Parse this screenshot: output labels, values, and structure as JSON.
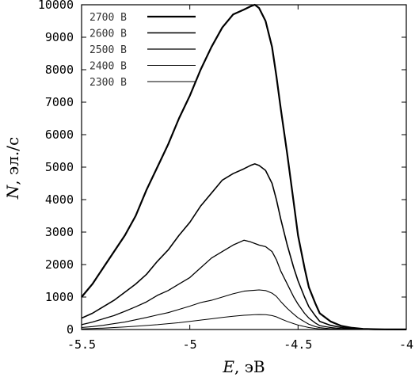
{
  "chart_data": {
    "type": "line",
    "xlabel_var": "E",
    "xlabel_unit": ", эВ",
    "ylabel_var": "N",
    "ylabel_unit": ", эл./с",
    "xlim": [
      -5.5,
      -4.0
    ],
    "ylim": [
      0,
      10000
    ],
    "xticks": [
      -5.5,
      -5,
      -4.5,
      -4
    ],
    "xtick_labels": [
      "-5.5",
      "-5",
      "-4.5",
      "-4"
    ],
    "yticks": [
      0,
      1000,
      2000,
      3000,
      4000,
      5000,
      6000,
      7000,
      8000,
      9000,
      10000
    ],
    "ytick_labels": [
      "0",
      "1000",
      "2000",
      "3000",
      "4000",
      "5000",
      "6000",
      "7000",
      "8000",
      "9000",
      "10000"
    ],
    "grid": false,
    "legend_position": "top-left",
    "series": [
      {
        "name": "2700 В",
        "x": [
          -5.5,
          -5.45,
          -5.4,
          -5.35,
          -5.3,
          -5.25,
          -5.2,
          -5.15,
          -5.1,
          -5.05,
          -5.0,
          -4.95,
          -4.9,
          -4.85,
          -4.8,
          -4.75,
          -4.72,
          -4.7,
          -4.68,
          -4.65,
          -4.62,
          -4.6,
          -4.58,
          -4.55,
          -4.52,
          -4.5,
          -4.47,
          -4.45,
          -4.42,
          -4.4,
          -4.35,
          -4.3,
          -4.25,
          -4.2,
          -4.15,
          -4.1,
          -4.05,
          -4.0
        ],
        "y": [
          1000,
          1400,
          1900,
          2400,
          2900,
          3500,
          4300,
          5000,
          5700,
          6500,
          7200,
          8000,
          8700,
          9300,
          9700,
          9850,
          9950,
          10000,
          9900,
          9500,
          8700,
          7800,
          6800,
          5400,
          3900,
          2900,
          1900,
          1300,
          800,
          500,
          250,
          110,
          50,
          20,
          10,
          5,
          3,
          2
        ]
      },
      {
        "name": "2600 В",
        "x": [
          -5.5,
          -5.45,
          -5.4,
          -5.35,
          -5.3,
          -5.25,
          -5.2,
          -5.15,
          -5.1,
          -5.05,
          -5.0,
          -4.95,
          -4.9,
          -4.85,
          -4.8,
          -4.75,
          -4.72,
          -4.7,
          -4.68,
          -4.65,
          -4.62,
          -4.6,
          -4.58,
          -4.55,
          -4.52,
          -4.5,
          -4.47,
          -4.45,
          -4.42,
          -4.4,
          -4.35,
          -4.3,
          -4.25,
          -4.2,
          -4.15,
          -4.1,
          -4.05,
          -4.0
        ],
        "y": [
          350,
          500,
          700,
          900,
          1150,
          1400,
          1700,
          2100,
          2450,
          2900,
          3300,
          3800,
          4200,
          4600,
          4800,
          4950,
          5050,
          5100,
          5050,
          4900,
          4500,
          4000,
          3400,
          2600,
          1900,
          1500,
          1000,
          700,
          420,
          250,
          130,
          60,
          25,
          10,
          5,
          3,
          2,
          1
        ]
      },
      {
        "name": "2500 В",
        "x": [
          -5.5,
          -5.45,
          -5.4,
          -5.35,
          -5.3,
          -5.25,
          -5.2,
          -5.15,
          -5.1,
          -5.05,
          -5.0,
          -4.95,
          -4.9,
          -4.85,
          -4.8,
          -4.75,
          -4.72,
          -4.7,
          -4.68,
          -4.65,
          -4.62,
          -4.6,
          -4.58,
          -4.55,
          -4.52,
          -4.5,
          -4.47,
          -4.45,
          -4.42,
          -4.4,
          -4.35,
          -4.3,
          -4.25,
          -4.2,
          -4.15,
          -4.1,
          -4.05,
          -4.0
        ],
        "y": [
          150,
          230,
          330,
          430,
          560,
          700,
          850,
          1050,
          1200,
          1400,
          1600,
          1900,
          2200,
          2400,
          2600,
          2750,
          2700,
          2650,
          2600,
          2550,
          2400,
          2150,
          1800,
          1400,
          1000,
          780,
          500,
          350,
          200,
          120,
          60,
          28,
          12,
          5,
          3,
          2,
          1,
          1
        ]
      },
      {
        "name": "2400 В",
        "x": [
          -5.5,
          -5.45,
          -5.4,
          -5.35,
          -5.3,
          -5.25,
          -5.2,
          -5.15,
          -5.1,
          -5.05,
          -5.0,
          -4.95,
          -4.9,
          -4.85,
          -4.8,
          -4.75,
          -4.72,
          -4.7,
          -4.68,
          -4.65,
          -4.62,
          -4.6,
          -4.58,
          -4.55,
          -4.52,
          -4.5,
          -4.47,
          -4.45,
          -4.42,
          -4.4,
          -4.35,
          -4.3,
          -4.25,
          -4.2,
          -4.15,
          -4.1,
          -4.05,
          -4.0
        ],
        "y": [
          60,
          90,
          130,
          180,
          230,
          300,
          370,
          450,
          520,
          620,
          720,
          830,
          900,
          1000,
          1100,
          1180,
          1200,
          1210,
          1220,
          1200,
          1120,
          1020,
          860,
          650,
          470,
          360,
          240,
          160,
          90,
          55,
          25,
          12,
          5,
          2,
          1,
          1,
          0,
          0
        ]
      },
      {
        "name": "2300 В",
        "x": [
          -5.5,
          -5.45,
          -5.4,
          -5.35,
          -5.3,
          -5.25,
          -5.2,
          -5.15,
          -5.1,
          -5.05,
          -5.0,
          -4.95,
          -4.9,
          -4.85,
          -4.8,
          -4.75,
          -4.72,
          -4.7,
          -4.68,
          -4.65,
          -4.62,
          -4.6,
          -4.58,
          -4.55,
          -4.52,
          -4.5,
          -4.47,
          -4.45,
          -4.42,
          -4.4,
          -4.35,
          -4.3,
          -4.25,
          -4.2,
          -4.15,
          -4.1,
          -4.05,
          -4.0
        ],
        "y": [
          20,
          30,
          45,
          60,
          80,
          100,
          125,
          150,
          180,
          210,
          250,
          290,
          330,
          370,
          410,
          440,
          450,
          455,
          460,
          455,
          430,
          390,
          330,
          250,
          180,
          140,
          90,
          60,
          35,
          20,
          10,
          5,
          2,
          1,
          0,
          0,
          0,
          0
        ]
      }
    ]
  },
  "style": {
    "line_color": "#000000",
    "legend_label_color": "#333333"
  }
}
